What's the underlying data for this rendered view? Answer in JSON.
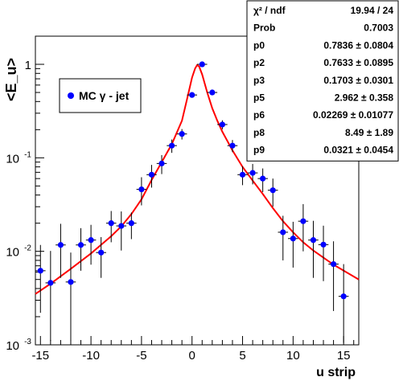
{
  "chart_data": {
    "type": "scatter",
    "title": "",
    "xlabel": "u strip",
    "ylabel": "<E_u>",
    "xlim": [
      -15.5,
      16.5
    ],
    "ylim": [
      0.001,
      2
    ],
    "y_scale": "log",
    "grid": false,
    "x_ticks": [
      -15,
      -10,
      -5,
      0,
      5,
      10,
      15
    ],
    "y_ticks": [
      {
        "value": 1,
        "label": "1"
      },
      {
        "value": 0.1,
        "label": "10",
        "exp": "-1"
      },
      {
        "value": 0.01,
        "label": "10",
        "exp": "-2"
      },
      {
        "value": 0.001,
        "label": "10",
        "exp": "-3"
      }
    ],
    "legend": {
      "label": "MC γ - jet",
      "placement": "upper-left"
    },
    "series": [
      {
        "name": "MC γ - jet",
        "color": "#0000ff",
        "x": [
          -15,
          -14,
          -13,
          -12,
          -11,
          -10,
          -9,
          -8,
          -7,
          -6,
          -5,
          -4,
          -3,
          -2,
          -1,
          0,
          1,
          2,
          3,
          4,
          5,
          6,
          7,
          8,
          9,
          10,
          11,
          12,
          13,
          14,
          15
        ],
        "y": [
          0.0062,
          0.0046,
          0.0117,
          0.0047,
          0.0117,
          0.0132,
          0.0097,
          0.02,
          0.0187,
          0.02,
          0.046,
          0.066,
          0.087,
          0.135,
          0.18,
          0.47,
          1.0,
          0.5,
          0.227,
          0.135,
          0.066,
          0.069,
          0.06,
          0.045,
          0.016,
          0.0137,
          0.021,
          0.0132,
          0.0118,
          0.0073,
          0.0033
        ],
        "y_err_low": [
          0.004,
          0.0035,
          0.0065,
          0.0036,
          0.0055,
          0.006,
          0.0045,
          0.0075,
          0.0085,
          0.0065,
          0.015,
          0.018,
          0.02,
          0.022,
          0.023,
          0.03,
          0.03,
          0.03,
          0.025,
          0.02,
          0.015,
          0.017,
          0.017,
          0.015,
          0.008,
          0.007,
          0.011,
          0.008,
          0.007,
          0.005,
          0.0026
        ],
        "y_err_high": [
          0.0055,
          0.0055,
          0.008,
          0.005,
          0.006,
          0.006,
          0.0045,
          0.007,
          0.008,
          0.006,
          0.016,
          0.018,
          0.02,
          0.022,
          0.023,
          0.03,
          0.03,
          0.03,
          0.025,
          0.02,
          0.015,
          0.017,
          0.017,
          0.015,
          0.008,
          0.007,
          0.011,
          0.008,
          0.007,
          0.0055,
          0.004
        ]
      },
      {
        "name": "",
        "color": "#ff0000",
        "x": [
          -15.5,
          -14,
          -12,
          -10,
          -8,
          -7,
          -6,
          -5,
          -4,
          -3,
          -2,
          -1,
          -0.5,
          0,
          0.3,
          0.5,
          0.7,
          1,
          1.5,
          2,
          2.5,
          3,
          4,
          5,
          6,
          7,
          8,
          9,
          10,
          11,
          12,
          14,
          16.5
        ],
        "y": [
          0.0035,
          0.0045,
          0.0065,
          0.0095,
          0.0145,
          0.0185,
          0.025,
          0.036,
          0.058,
          0.09,
          0.14,
          0.25,
          0.42,
          0.72,
          0.9,
          0.98,
          0.95,
          0.78,
          0.5,
          0.34,
          0.25,
          0.19,
          0.12,
          0.08,
          0.057,
          0.041,
          0.029,
          0.021,
          0.016,
          0.0125,
          0.0102,
          0.0072,
          0.005
        ]
      }
    ],
    "stats": [
      {
        "name": "χ² / ndf",
        "value": "19.94 / 24"
      },
      {
        "name": "Prob",
        "value": "0.7003"
      },
      {
        "name": "p0",
        "value": "0.7836 ± 0.0804"
      },
      {
        "name": "p2",
        "value": "0.7633 ± 0.0895"
      },
      {
        "name": "p3",
        "value": "0.1703 ± 0.0301"
      },
      {
        "name": "p5",
        "value": "2.962 ± 0.358"
      },
      {
        "name": "p6",
        "value": "0.02269 ± 0.01077"
      },
      {
        "name": "p8",
        "value": "8.49 ± 1.89"
      },
      {
        "name": "p9",
        "value": "0.0321 ± 0.0454"
      }
    ]
  }
}
